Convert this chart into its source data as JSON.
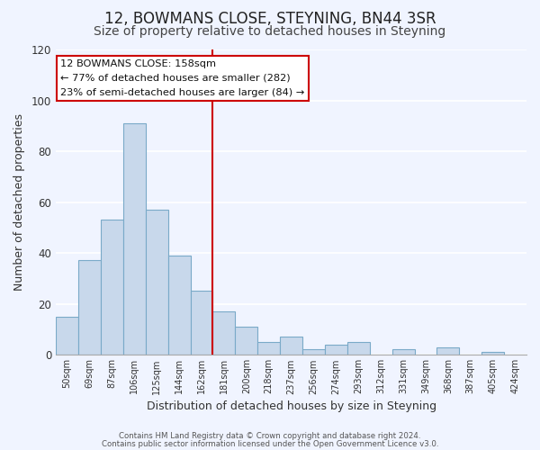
{
  "title": "12, BOWMANS CLOSE, STEYNING, BN44 3SR",
  "subtitle": "Size of property relative to detached houses in Steyning",
  "xlabel": "Distribution of detached houses by size in Steyning",
  "ylabel": "Number of detached properties",
  "bin_labels": [
    "50sqm",
    "69sqm",
    "87sqm",
    "106sqm",
    "125sqm",
    "144sqm",
    "162sqm",
    "181sqm",
    "200sqm",
    "218sqm",
    "237sqm",
    "256sqm",
    "274sqm",
    "293sqm",
    "312sqm",
    "331sqm",
    "349sqm",
    "368sqm",
    "387sqm",
    "405sqm",
    "424sqm"
  ],
  "bar_values": [
    15,
    37,
    53,
    91,
    57,
    39,
    25,
    17,
    11,
    5,
    7,
    2,
    4,
    5,
    0,
    2,
    0,
    3,
    0,
    1,
    0
  ],
  "bar_color": "#c8d8eb",
  "bar_edge_color": "#7aaac8",
  "vline_idx": 6,
  "vline_color": "#cc0000",
  "ylim": [
    0,
    120
  ],
  "yticks": [
    0,
    20,
    40,
    60,
    80,
    100,
    120
  ],
  "annotation_title": "12 BOWMANS CLOSE: 158sqm",
  "annotation_line1": "← 77% of detached houses are smaller (282)",
  "annotation_line2": "23% of semi-detached houses are larger (84) →",
  "annotation_box_color": "#ffffff",
  "annotation_box_edge": "#cc0000",
  "footer1": "Contains HM Land Registry data © Crown copyright and database right 2024.",
  "footer2": "Contains public sector information licensed under the Open Government Licence v3.0.",
  "background_color": "#f0f4ff",
  "title_fontsize": 12,
  "subtitle_fontsize": 10
}
